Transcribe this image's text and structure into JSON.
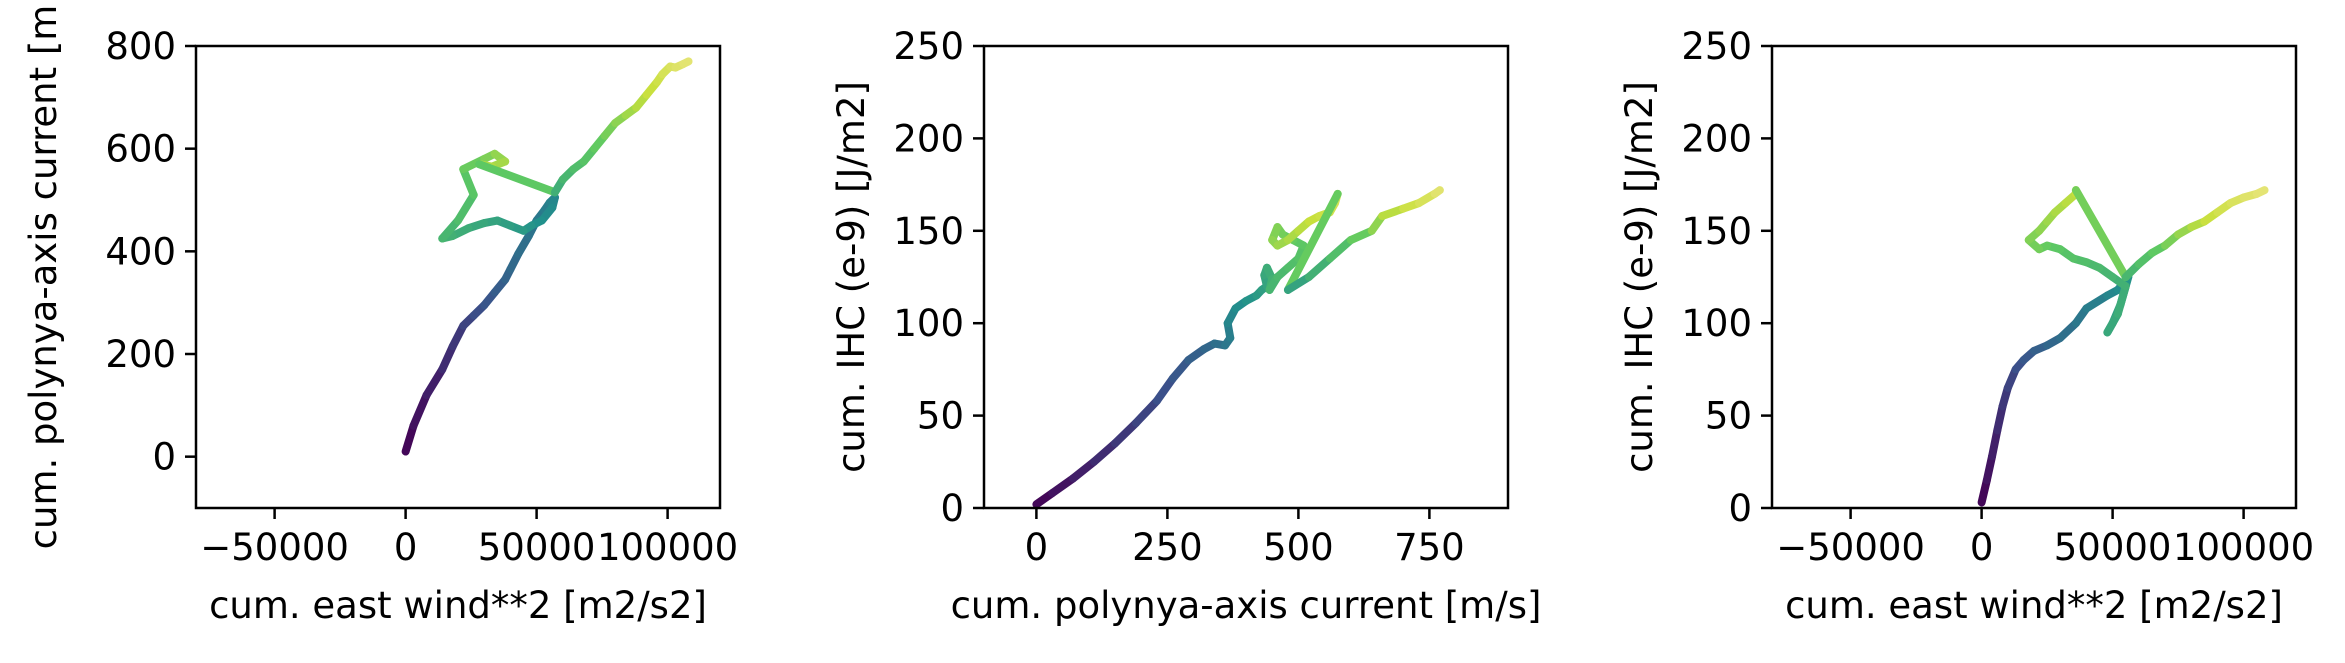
{
  "chart_data": [
    {
      "type": "line",
      "xlabel": "cum. east wind**2 [m2/s2]",
      "ylabel": "cum. polynya-axis current [m",
      "xlim": [
        -80000,
        120000
      ],
      "ylim": [
        -100,
        800
      ],
      "xticks": [
        -50000,
        0,
        50000,
        100000
      ],
      "xtick_labels": [
        "−50000",
        "0",
        "50000",
        "100000"
      ],
      "yticks": [
        0,
        200,
        400,
        600,
        800
      ],
      "ytick_labels": [
        "0",
        "200",
        "400",
        "600",
        "800"
      ],
      "colorscale": "viridis (time)",
      "x": [
        0,
        3000,
        8000,
        14000,
        18000,
        22000,
        26000,
        30000,
        34000,
        38000,
        40000,
        43000,
        47000,
        50000,
        53000,
        55000,
        57000,
        56000,
        52000,
        48000,
        45000,
        40000,
        35000,
        30000,
        24000,
        18000,
        14000,
        20000,
        26000,
        22000,
        30000,
        34000,
        38000,
        33000,
        28000,
        57000,
        60000,
        64000,
        68000,
        72000,
        76000,
        80000,
        84000,
        88000,
        92000,
        96000,
        98000,
        101000,
        103000,
        106000,
        108000
      ],
      "y": [
        10,
        60,
        120,
        170,
        215,
        255,
        275,
        295,
        320,
        345,
        365,
        395,
        430,
        460,
        480,
        495,
        505,
        485,
        460,
        450,
        440,
        450,
        460,
        455,
        445,
        430,
        425,
        460,
        510,
        560,
        580,
        590,
        575,
        565,
        570,
        515,
        540,
        560,
        575,
        600,
        625,
        650,
        665,
        680,
        705,
        730,
        745,
        760,
        758,
        765,
        770
      ],
      "t": [
        0,
        0.03,
        0.06,
        0.09,
        0.12,
        0.15,
        0.18,
        0.2,
        0.23,
        0.26,
        0.28,
        0.3,
        0.32,
        0.34,
        0.36,
        0.38,
        0.4,
        0.42,
        0.44,
        0.46,
        0.48,
        0.5,
        0.52,
        0.54,
        0.56,
        0.58,
        0.6,
        0.63,
        0.66,
        0.7,
        0.73,
        0.76,
        0.79,
        0.81,
        0.83,
        0.56,
        0.6,
        0.63,
        0.66,
        0.69,
        0.72,
        0.75,
        0.78,
        0.81,
        0.84,
        0.87,
        0.9,
        0.93,
        0.95,
        0.97,
        1.0
      ]
    },
    {
      "type": "line",
      "xlabel": "cum. polynya-axis current [m/s]",
      "ylabel": "cum. IHC (e-9) [J/m2]",
      "xlim": [
        -100,
        900
      ],
      "ylim": [
        0,
        250
      ],
      "xticks": [
        0,
        250,
        500,
        750
      ],
      "xtick_labels": [
        "0",
        "250",
        "500",
        "750"
      ],
      "yticks": [
        0,
        50,
        100,
        150,
        200,
        250
      ],
      "ytick_labels": [
        "0",
        "50",
        "100",
        "150",
        "200",
        "250"
      ],
      "colorscale": "viridis (time)",
      "x": [
        0,
        30,
        70,
        110,
        150,
        190,
        230,
        260,
        290,
        320,
        340,
        360,
        370,
        365,
        380,
        400,
        420,
        430,
        440,
        435,
        440,
        450,
        445,
        460,
        480,
        500,
        510,
        490,
        470,
        460,
        450,
        460,
        480,
        500,
        520,
        540,
        560,
        570,
        575,
        480,
        520,
        560,
        600,
        640,
        660,
        700,
        730,
        760,
        770
      ],
      "y": [
        2,
        8,
        16,
        25,
        35,
        46,
        58,
        70,
        80,
        86,
        89,
        88,
        92,
        100,
        108,
        112,
        115,
        118,
        120,
        126,
        130,
        124,
        118,
        125,
        130,
        135,
        142,
        145,
        148,
        152,
        145,
        142,
        145,
        150,
        155,
        158,
        160,
        165,
        170,
        118,
        125,
        135,
        145,
        150,
        158,
        162,
        165,
        170,
        172
      ],
      "t": [
        0,
        0.03,
        0.06,
        0.09,
        0.12,
        0.15,
        0.18,
        0.21,
        0.24,
        0.27,
        0.3,
        0.33,
        0.36,
        0.39,
        0.42,
        0.45,
        0.48,
        0.5,
        0.52,
        0.54,
        0.56,
        0.58,
        0.6,
        0.62,
        0.64,
        0.66,
        0.68,
        0.7,
        0.72,
        0.74,
        0.76,
        0.78,
        0.8,
        0.82,
        0.84,
        0.86,
        0.88,
        0.9,
        0.92,
        0.5,
        0.56,
        0.62,
        0.68,
        0.74,
        0.8,
        0.86,
        0.9,
        0.95,
        1.0
      ]
    },
    {
      "type": "line",
      "xlabel": "cum. east wind**2 [m2/s2]",
      "ylabel": "cum. IHC (e-9) [J/m2]",
      "xlim": [
        -80000,
        120000
      ],
      "ylim": [
        0,
        250
      ],
      "xticks": [
        -50000,
        0,
        50000,
        100000
      ],
      "xtick_labels": [
        "−50000",
        "0",
        "50000",
        "100000"
      ],
      "yticks": [
        0,
        50,
        100,
        150,
        200,
        250
      ],
      "ytick_labels": [
        "0",
        "50",
        "100",
        "150",
        "200",
        "250"
      ],
      "colorscale": "viridis (time)",
      "x": [
        0,
        2000,
        4000,
        6000,
        8000,
        10000,
        13000,
        16000,
        20000,
        25000,
        30000,
        36000,
        40000,
        48000,
        52000,
        56000,
        55000,
        53000,
        50000,
        48000,
        52000,
        55000,
        50000,
        45000,
        40000,
        35000,
        30000,
        25000,
        22000,
        18000,
        22000,
        25000,
        28000,
        32000,
        36000,
        36000,
        55000,
        60000,
        65000,
        70000,
        75000,
        80000,
        85000,
        90000,
        95000,
        100000,
        105000,
        108000
      ],
      "y": [
        3,
        15,
        28,
        42,
        55,
        65,
        75,
        80,
        85,
        88,
        92,
        100,
        108,
        115,
        118,
        125,
        120,
        110,
        100,
        95,
        105,
        120,
        125,
        130,
        133,
        135,
        140,
        142,
        140,
        145,
        150,
        155,
        160,
        165,
        170,
        172,
        125,
        132,
        138,
        142,
        148,
        152,
        155,
        160,
        165,
        168,
        170,
        172
      ],
      "t": [
        0,
        0.03,
        0.06,
        0.09,
        0.12,
        0.15,
        0.18,
        0.21,
        0.24,
        0.27,
        0.3,
        0.33,
        0.36,
        0.39,
        0.42,
        0.45,
        0.48,
        0.5,
        0.52,
        0.54,
        0.56,
        0.58,
        0.6,
        0.62,
        0.64,
        0.66,
        0.68,
        0.7,
        0.72,
        0.74,
        0.76,
        0.78,
        0.8,
        0.82,
        0.84,
        0.86,
        0.6,
        0.64,
        0.68,
        0.72,
        0.76,
        0.8,
        0.84,
        0.88,
        0.92,
        0.95,
        0.98,
        1.0
      ]
    }
  ]
}
